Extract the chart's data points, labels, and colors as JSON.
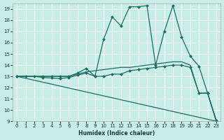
{
  "xlabel": "Humidex (Indice chaleur)",
  "xlim": [
    -0.5,
    23.5
  ],
  "ylim": [
    9,
    19.5
  ],
  "yticks": [
    9,
    10,
    11,
    12,
    13,
    14,
    15,
    16,
    17,
    18,
    19
  ],
  "xticks": [
    0,
    1,
    2,
    3,
    4,
    5,
    6,
    7,
    8,
    9,
    10,
    11,
    12,
    13,
    14,
    15,
    16,
    17,
    18,
    19,
    20,
    21,
    22,
    23
  ],
  "bg_color": "#c8ece6",
  "line_color": "#1a6e62",
  "grid_color": "#ffffff",
  "lines": [
    {
      "x": [
        0,
        3,
        4,
        5,
        6,
        7,
        8,
        9,
        10,
        11,
        12,
        13,
        14,
        15,
        16,
        17,
        18,
        19,
        20,
        21,
        22,
        23
      ],
      "y": [
        13,
        13,
        13,
        13,
        13,
        13.3,
        13.7,
        13.0,
        16.3,
        18.3,
        17.5,
        19.2,
        19.2,
        19.3,
        14.0,
        17.0,
        19.3,
        16.5,
        14.8,
        13.9,
        11.5,
        9.1
      ],
      "marker": "D",
      "markersize": 2.0,
      "linewidth": 0.9
    },
    {
      "x": [
        0,
        1,
        2,
        3,
        4,
        5,
        6,
        7,
        8,
        9,
        10,
        11,
        12,
        13,
        14,
        15,
        16,
        17,
        18,
        19,
        20,
        21,
        22,
        23
      ],
      "y": [
        13,
        13,
        13,
        13,
        13,
        13,
        13,
        13.2,
        13.4,
        13.5,
        13.6,
        13.7,
        13.8,
        13.8,
        13.9,
        14.0,
        14.1,
        14.2,
        14.3,
        14.3,
        14.0,
        11.5,
        11.5,
        9.0
      ],
      "marker": null,
      "markersize": 0,
      "linewidth": 0.9
    },
    {
      "x": [
        0,
        1,
        2,
        3,
        4,
        5,
        6,
        7,
        8,
        9,
        10,
        11,
        12,
        13,
        14,
        15,
        16,
        17,
        18,
        19,
        20,
        21,
        22,
        23
      ],
      "y": [
        13,
        13,
        13,
        12.9,
        12.85,
        12.8,
        12.9,
        13.1,
        13.3,
        13.0,
        13.0,
        13.2,
        13.2,
        13.5,
        13.6,
        13.7,
        13.8,
        13.9,
        14.0,
        14.0,
        13.8,
        11.5,
        11.5,
        9.0
      ],
      "marker": "D",
      "markersize": 2.0,
      "linewidth": 0.9
    },
    {
      "x": [
        0,
        23
      ],
      "y": [
        13,
        9
      ],
      "marker": null,
      "markersize": 0,
      "linewidth": 0.9
    }
  ]
}
